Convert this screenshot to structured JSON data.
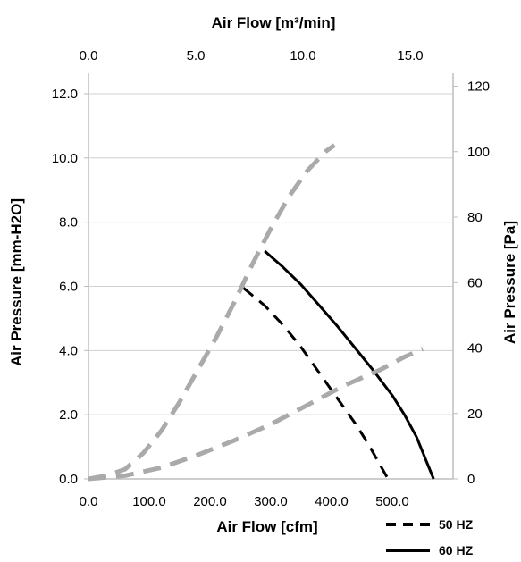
{
  "chart_data": {
    "type": "line",
    "title": "",
    "axes": {
      "bottom": {
        "label": "Air Flow [cfm]",
        "range": [
          0,
          600
        ],
        "ticks": [
          "0.0",
          "100.0",
          "200.0",
          "300.0",
          "400.0",
          "500.0"
        ]
      },
      "top": {
        "label": "Air Flow [m³/min]",
        "range": [
          0,
          17
        ],
        "ticks": [
          "0.0",
          "5.0",
          "10.0",
          "15.0"
        ]
      },
      "left": {
        "label": "Air Pressure [mm-H2O]",
        "range": [
          0,
          12.5
        ],
        "ticks": [
          "0.0",
          "2.0",
          "4.0",
          "6.0",
          "8.0",
          "10.0",
          "12.0"
        ]
      },
      "right": {
        "label": "Air Pressure [Pa]",
        "range": [
          0,
          122.6
        ],
        "ticks": [
          "0",
          "20",
          "40",
          "60",
          "80",
          "100",
          "120"
        ]
      }
    },
    "series": [
      {
        "name": "50 HZ",
        "style": "dashed",
        "color": "#000000",
        "x": [
          255,
          290,
          320,
          350,
          380,
          410,
          440,
          460,
          478,
          493
        ],
        "y": [
          5.95,
          5.4,
          4.8,
          4.1,
          3.3,
          2.5,
          1.7,
          1.1,
          0.5,
          0.0
        ]
      },
      {
        "name": "60 HZ",
        "style": "solid",
        "color": "#000000",
        "x": [
          290,
          320,
          350,
          380,
          410,
          440,
          470,
          500,
          520,
          540,
          555,
          568
        ],
        "y": [
          7.1,
          6.6,
          6.05,
          5.4,
          4.75,
          4.05,
          3.35,
          2.6,
          2.0,
          1.3,
          0.6,
          0.0
        ]
      },
      {
        "style": "dashed",
        "color": "#aaaaaa",
        "x": [
          0,
          30,
          60,
          90,
          120,
          150,
          180,
          210,
          240,
          270,
          300,
          330,
          360,
          390,
          405
        ],
        "y": [
          0.0,
          0.1,
          0.3,
          0.8,
          1.5,
          2.4,
          3.4,
          4.4,
          5.5,
          6.7,
          7.8,
          8.8,
          9.6,
          10.2,
          10.4
        ]
      },
      {
        "style": "dashed",
        "color": "#aaaaaa",
        "x": [
          0,
          60,
          120,
          180,
          240,
          300,
          360,
          420,
          480,
          520,
          550
        ],
        "y": [
          0.0,
          0.1,
          0.35,
          0.75,
          1.2,
          1.7,
          2.3,
          2.9,
          3.4,
          3.8,
          4.05
        ]
      }
    ],
    "grid": {
      "horizontal": true,
      "vertical": false
    },
    "legend": {
      "position": "bottom-right",
      "entries": [
        "50 HZ",
        "60 HZ"
      ]
    }
  }
}
